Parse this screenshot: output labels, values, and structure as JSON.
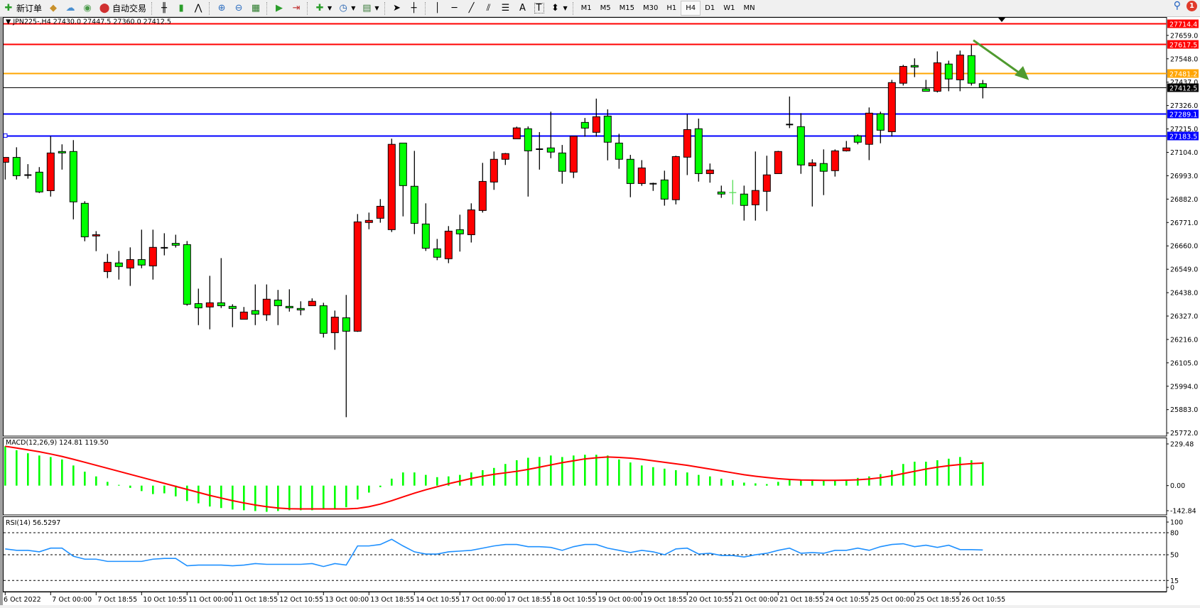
{
  "toolbar": {
    "new_order": "新订单",
    "auto_trading": "自动交易",
    "icons": [
      "new-order-icon",
      "metaeditor-icon",
      "market-watch-icon",
      "signals-icon",
      "auto-trading-icon",
      "bar-chart-icon",
      "candlestick-icon",
      "line-chart-icon",
      "zoom-in-icon",
      "zoom-out-icon",
      "tile-windows-icon",
      "auto-scroll-icon",
      "chart-shift-icon",
      "indicators-icon",
      "periods-icon",
      "templates-icon",
      "cursor-icon",
      "crosshair-icon",
      "vertical-line-icon",
      "horizontal-line-icon",
      "trendline-icon",
      "equidistant-channel-icon",
      "fibonacci-icon",
      "text-icon",
      "text-label-icon",
      "arrows-icon"
    ],
    "text_tool": "A",
    "label_tool": "T",
    "timeframes": [
      "M1",
      "M5",
      "M15",
      "M30",
      "H1",
      "H4",
      "D1",
      "W1",
      "MN"
    ],
    "active_timeframe": "H4",
    "notification_count": "1"
  },
  "chart_title": "JPN225-,H4  27430.0 27447.5 27360.0 27412.5",
  "colors": {
    "bull": "#ff0000",
    "bear": "#00ff00",
    "grid_bg": "#ffffff",
    "macd_hist": "#00ff00",
    "macd_signal": "#ff0000",
    "rsi": "#1e90ff",
    "arrow": "#4f9a2f"
  },
  "price_levels": [
    {
      "value": "27714.4",
      "color": "#ff0000"
    },
    {
      "value": "27617.5",
      "color": "#ff0000"
    },
    {
      "value": "27481.2",
      "color": "#ffa500"
    },
    {
      "value": "27412.5",
      "color": "#000000"
    },
    {
      "value": "27289.1",
      "color": "#0000ff"
    },
    {
      "value": "27183.5",
      "color": "#0000ff"
    }
  ],
  "chart_data": {
    "type": "candlestick",
    "symbol": "JPN225-",
    "timeframe": "H4",
    "price_ticks": [
      "27659.0",
      "27548.0",
      "27437.0",
      "27326.0",
      "27215.0",
      "27104.0",
      "26993.0",
      "26882.0",
      "26771.0",
      "26660.0",
      "26549.0",
      "26438.0",
      "26327.0",
      "26216.0",
      "26105.0",
      "25994.0",
      "25883.0",
      "25772.0"
    ],
    "ylim": [
      25772.0,
      27714.4
    ],
    "time_labels": [
      "6 Oct 2022",
      "7 Oct 00:00",
      "7 Oct 18:55",
      "10 Oct 10:55",
      "11 Oct 00:00",
      "11 Oct 18:55",
      "12 Oct 10:55",
      "13 Oct 00:00",
      "13 Oct 18:55",
      "14 Oct 10:55",
      "17 Oct 00:00",
      "17 Oct 18:55",
      "18 Oct 10:55",
      "19 Oct 00:00",
      "19 Oct 18:55",
      "20 Oct 10:55",
      "21 Oct 00:00",
      "21 Oct 18:55",
      "24 Oct 10:55",
      "25 Oct 00:00",
      "25 Oct 18:55",
      "26 Oct 10:55"
    ],
    "candles_ohlc": [
      [
        27057,
        27080,
        26975,
        27080
      ],
      [
        27080,
        27128,
        26975,
        26993
      ],
      [
        26996,
        27048,
        26979,
        26996
      ],
      [
        27010,
        27034,
        26911,
        26916
      ],
      [
        26922,
        27181,
        26894,
        27101
      ],
      [
        27108,
        27142,
        27022,
        27101
      ],
      [
        27108,
        27162,
        26786,
        26869
      ],
      [
        26862,
        26872,
        26682,
        26703
      ],
      [
        26707,
        26730,
        26635,
        26713
      ],
      [
        26538,
        26622,
        26507,
        26582
      ],
      [
        26579,
        26636,
        26500,
        26562
      ],
      [
        26555,
        26653,
        26470,
        26595
      ],
      [
        26595,
        26737,
        26554,
        26569
      ],
      [
        26565,
        26737,
        26500,
        26653
      ],
      [
        26651,
        26720,
        26615,
        26651
      ],
      [
        26672,
        26713,
        26652,
        26663
      ],
      [
        26666,
        26683,
        26376,
        26383
      ],
      [
        26386,
        26457,
        26284,
        26366
      ],
      [
        26370,
        26518,
        26264,
        26390
      ],
      [
        26390,
        26602,
        26365,
        26376
      ],
      [
        26373,
        26383,
        26274,
        26363
      ],
      [
        26312,
        26370,
        26312,
        26346
      ],
      [
        26353,
        26477,
        26284,
        26336
      ],
      [
        26333,
        26477,
        26304,
        26407
      ],
      [
        26403,
        26451,
        26284,
        26376
      ],
      [
        26373,
        26454,
        26348,
        26366
      ],
      [
        26363,
        26397,
        26331,
        26356
      ],
      [
        26376,
        26411,
        26376,
        26397
      ],
      [
        26376,
        26390,
        26225,
        26245
      ],
      [
        26248,
        26353,
        26167,
        26322
      ],
      [
        26319,
        26427,
        25847,
        26255
      ],
      [
        26255,
        26811,
        26252,
        26774
      ],
      [
        26771,
        26818,
        26739,
        26781
      ],
      [
        26791,
        26882,
        26770,
        26848
      ],
      [
        26737,
        27169,
        26726,
        27142
      ],
      [
        27148,
        27148,
        26800,
        26946
      ],
      [
        26943,
        27111,
        26716,
        26767
      ],
      [
        26764,
        26862,
        26636,
        26649
      ],
      [
        26646,
        26693,
        26592,
        26606
      ],
      [
        26599,
        26754,
        26578,
        26730
      ],
      [
        26737,
        26808,
        26633,
        26717
      ],
      [
        26713,
        26862,
        26676,
        26831
      ],
      [
        26828,
        27054,
        26818,
        26966
      ],
      [
        26963,
        27108,
        26926,
        27071
      ],
      [
        27071,
        27101,
        27044,
        27098
      ],
      [
        27168,
        27226,
        27168,
        27220
      ],
      [
        27216,
        27227,
        26894,
        27111
      ],
      [
        27119,
        27200,
        27022,
        27119
      ],
      [
        27125,
        27297,
        27076,
        27105
      ],
      [
        27101,
        27139,
        26955,
        27014
      ],
      [
        27010,
        27180,
        26982,
        27180
      ],
      [
        27246,
        27267,
        27178,
        27219
      ],
      [
        27199,
        27359,
        27178,
        27273
      ],
      [
        27276,
        27308,
        27066,
        27152
      ],
      [
        27148,
        27192,
        27026,
        27071
      ],
      [
        27071,
        27092,
        26891,
        26956
      ],
      [
        26956,
        27067,
        26945,
        27030
      ],
      [
        26955,
        26960,
        26921,
        26955
      ],
      [
        26973,
        27017,
        26851,
        26882
      ],
      [
        26879,
        27088,
        26857,
        27084
      ],
      [
        27081,
        27284,
        26996,
        27212
      ],
      [
        27216,
        27264,
        26965,
        27003
      ],
      [
        27003,
        27051,
        26960,
        27020
      ],
      [
        26916,
        26946,
        26888,
        26906
      ],
      [
        26913,
        26973,
        26857,
        26912
      ],
      [
        26906,
        26946,
        26780,
        26852
      ],
      [
        26855,
        27108,
        26780,
        26923
      ],
      [
        26919,
        27088,
        26825,
        26997
      ],
      [
        27003,
        27111,
        27003,
        27108
      ],
      [
        27236,
        27369,
        27219,
        27236
      ],
      [
        27226,
        27290,
        27002,
        27044
      ],
      [
        27040,
        27071,
        26847,
        27054
      ],
      [
        27051,
        27118,
        26901,
        27014
      ],
      [
        27017,
        27118,
        26989,
        27111
      ],
      [
        27111,
        27158,
        27108,
        27125
      ],
      [
        27182,
        27189,
        27142,
        27152
      ],
      [
        27142,
        27317,
        27067,
        27290
      ],
      [
        27287,
        27297,
        27147,
        27209
      ],
      [
        27202,
        27448,
        27179,
        27435
      ],
      [
        27432,
        27519,
        27421,
        27512
      ],
      [
        27516,
        27550,
        27461,
        27509
      ],
      [
        27405,
        27448,
        27394,
        27394
      ],
      [
        27394,
        27583,
        27388,
        27529
      ],
      [
        27523,
        27539,
        27394,
        27452
      ],
      [
        27448,
        27587,
        27394,
        27566
      ],
      [
        27563,
        27614,
        27421,
        27432
      ],
      [
        27430,
        27447.5,
        27360,
        27412.5
      ]
    ],
    "annotation_arrow": {
      "direction": "down-right",
      "from_price": 27640,
      "to_price": 27450
    },
    "macd": {
      "title": "MACD(12,26,9) 124.81 119.50",
      "ticks": [
        "229.48",
        "0.00",
        "-142.84"
      ],
      "ylim": [
        -142.84,
        229.48
      ],
      "histogram": [
        209,
        188,
        172,
        160,
        152,
        139,
        107,
        74,
        49,
        20,
        4,
        -12,
        -29,
        -45,
        -41,
        -57,
        -82,
        -94,
        -111,
        -119,
        -127,
        -131,
        -135,
        -139,
        -135,
        -131,
        -131,
        -131,
        -127,
        -123,
        -115,
        -74,
        -37,
        -8,
        37,
        70,
        70,
        57,
        45,
        49,
        57,
        70,
        82,
        94,
        115,
        135,
        148,
        152,
        160,
        152,
        160,
        164,
        164,
        160,
        139,
        123,
        107,
        98,
        90,
        82,
        70,
        57,
        49,
        37,
        29,
        16,
        12,
        8,
        20,
        33,
        33,
        33,
        29,
        29,
        33,
        41,
        49,
        61,
        82,
        115,
        127,
        127,
        135,
        143,
        152,
        135,
        124.81
      ],
      "signal": [
        209,
        200,
        190,
        180,
        168,
        155,
        140,
        124,
        108,
        92,
        76,
        60,
        44,
        28,
        12,
        -4,
        -20,
        -36,
        -52,
        -66,
        -80,
        -92,
        -103,
        -112,
        -119,
        -123,
        -124,
        -124,
        -124,
        -124,
        -124,
        -121,
        -112,
        -98,
        -80,
        -60,
        -40,
        -22,
        -6,
        10,
        24,
        38,
        50,
        60,
        68,
        76,
        86,
        98,
        110,
        122,
        132,
        142,
        148,
        152,
        150,
        146,
        140,
        132,
        124,
        116,
        108,
        98,
        88,
        78,
        68,
        58,
        50,
        43,
        37,
        33,
        30,
        29,
        28,
        28,
        29,
        31,
        35,
        42,
        52,
        64,
        76,
        88,
        98,
        106,
        112,
        117,
        119.5
      ]
    },
    "rsi": {
      "title": "RSI(14) 56.5297",
      "ticks": [
        "100",
        "80",
        "50",
        "15",
        "0"
      ],
      "levels": [
        80,
        50,
        15
      ],
      "values": [
        58,
        56,
        56,
        54,
        59,
        59,
        48,
        44,
        44,
        41,
        41,
        41,
        41,
        44,
        45,
        45,
        35,
        36,
        36,
        36,
        35,
        36,
        38,
        37,
        37,
        37,
        37,
        38,
        34,
        38,
        36,
        62,
        62,
        64,
        71,
        62,
        54,
        51,
        51,
        54,
        55,
        56,
        59,
        62,
        64,
        64,
        61,
        61,
        60,
        56,
        61,
        64,
        64,
        59,
        56,
        53,
        56,
        54,
        50,
        58,
        59,
        51,
        52,
        49,
        49,
        47,
        50,
        52,
        56,
        59,
        52,
        53,
        52,
        56,
        56,
        59,
        56,
        61,
        64,
        65,
        61,
        63,
        60,
        63,
        57,
        57,
        56.53
      ]
    }
  }
}
